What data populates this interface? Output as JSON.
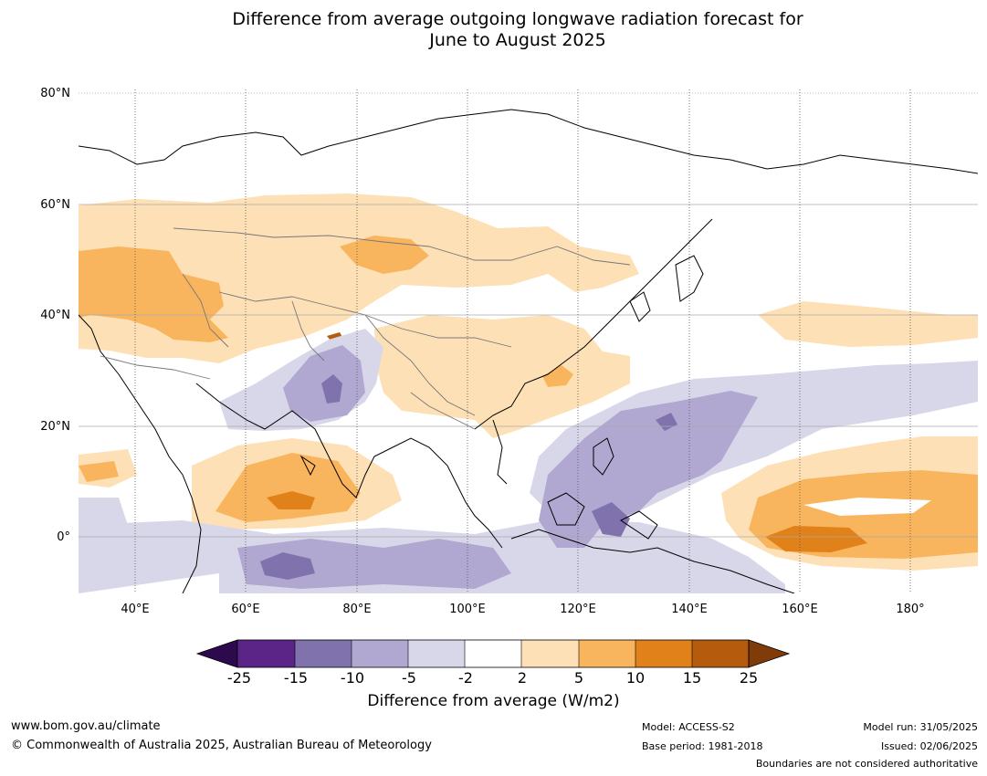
{
  "title": {
    "line1": "Difference from average outgoing longwave radiation forecast for",
    "line2": "June to August 2025"
  },
  "map": {
    "lat_labels": [
      "80°N",
      "60°N",
      "40°N",
      "20°N",
      "0°"
    ],
    "lon_labels": [
      "40°E",
      "60°E",
      "80°E",
      "100°E",
      "120°E",
      "140°E",
      "160°E",
      "180°"
    ],
    "colors": {
      "minus_25_beyond": "#2d0a4e",
      "minus_25_15": "#5a2587",
      "minus_15_10": "#8073ad",
      "minus_10_5": "#b0a8d0",
      "minus_5_2": "#d8d7e9",
      "minus_2_2": "#ffffff",
      "plus_2_5": "#fde0b5",
      "plus_5_10": "#f9b55e",
      "plus_10_15": "#e08219",
      "plus_15_25": "#b55b0e",
      "plus_25_beyond": "#7f3b08"
    }
  },
  "colorbar": {
    "ticks": [
      "-25",
      "-15",
      "-10",
      "-5",
      "-2",
      "2",
      "5",
      "10",
      "15",
      "25"
    ],
    "label": "Difference from average (W/m2)"
  },
  "footer": {
    "website": "www.bom.gov.au/climate",
    "copyright": "© Commonwealth of Australia 2025, Australian Bureau of Meteorology",
    "model": "Model: ACCESS-S2",
    "base_period": "Base period: 1981-2018",
    "model_run": "Model run: 31/05/2025",
    "issued": "Issued: 02/06/2025",
    "boundaries": "Boundaries are not considered authoritative"
  }
}
